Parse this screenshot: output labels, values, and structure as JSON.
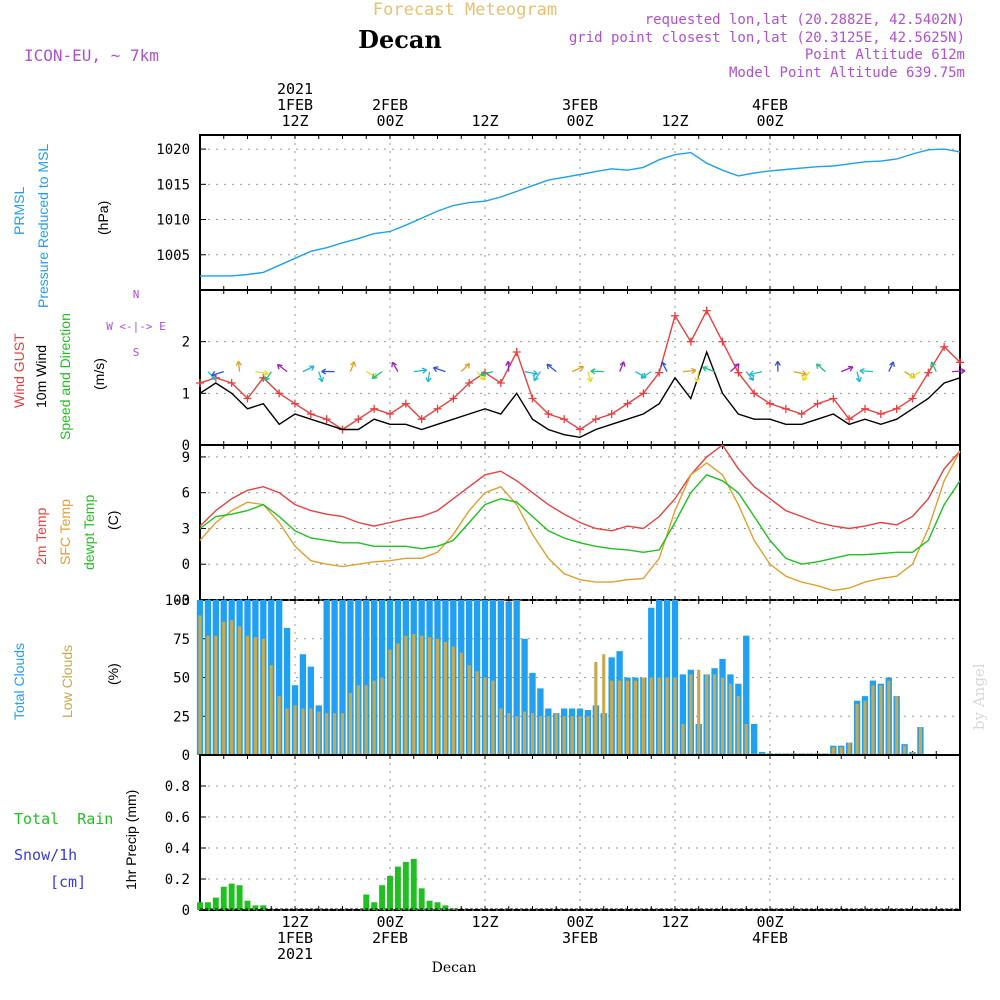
{
  "header": {
    "top_title": "Forecast Meteogram",
    "station": "Decan",
    "model": "ICON-EU, ~ 7km",
    "requested": "requested lon,lat (20.2882E, 42.5402N)",
    "gridpoint": "grid point closest lon,lat (20.3125E, 42.5625N)",
    "alt1": "Point Altitude 612m",
    "alt2": "Model Point Altitude 639.75m",
    "credit": "by Angel",
    "footer": "Decan"
  },
  "colors": {
    "pressure": "#1fa0e8",
    "gust": "#e84040",
    "wind": "#000000",
    "temp2m": "#e84040",
    "sfc": "#e0a030",
    "dewpt": "#20c020",
    "total_clouds": "#1fa0f0",
    "low_clouds": "#c8a850",
    "rain": "#20c020",
    "snow_label": "#3a3ae0",
    "model_label": "#b050d0",
    "title_label": "#e8c070"
  },
  "top_axis": [
    {
      "pos": 12,
      "lines": [
        "2021",
        "1FEB",
        "12Z"
      ]
    },
    {
      "pos": 24,
      "lines": [
        "2FEB",
        "00Z"
      ]
    },
    {
      "pos": 36,
      "lines": [
        "12Z"
      ]
    },
    {
      "pos": 48,
      "lines": [
        "3FEB",
        "00Z"
      ]
    },
    {
      "pos": 60,
      "lines": [
        "12Z"
      ]
    },
    {
      "pos": 72,
      "lines": [
        "4FEB",
        "00Z"
      ]
    }
  ],
  "bottom_axis": [
    {
      "pos": 12,
      "lines": [
        "12Z",
        "1FEB",
        "2021"
      ]
    },
    {
      "pos": 24,
      "lines": [
        "00Z",
        "2FEB"
      ]
    },
    {
      "pos": 36,
      "lines": [
        "12Z"
      ]
    },
    {
      "pos": 48,
      "lines": [
        "00Z",
        "3FEB"
      ]
    },
    {
      "pos": 60,
      "lines": [
        "12Z"
      ]
    },
    {
      "pos": 72,
      "lines": [
        "00Z",
        "4FEB"
      ]
    }
  ],
  "panel_labels": {
    "pressure": [
      "PRMSL",
      "Pressure Reduced to MSL",
      "(hPa)"
    ],
    "wind": [
      "Wind GUST",
      "10m Wind",
      "Speed and Direction",
      "(m/s)"
    ],
    "compass": [
      "N",
      "W <-|-> E",
      "S"
    ],
    "temp": [
      "2m Temp",
      "SFC Temp",
      "dewpt Temp",
      "(C)"
    ],
    "clouds": [
      "Total Clouds",
      "Low Clouds",
      "(%)"
    ],
    "precip": [
      "Total  Rain",
      "Snow/1h",
      "[cm]",
      "1hr Precip (mm)"
    ]
  },
  "chart_data": [
    {
      "type": "line",
      "title": "PRMSL Pressure Reduced to MSL",
      "ylabel": "(hPa)",
      "ylim": [
        1000,
        1022
      ],
      "yticks": [
        1005,
        1010,
        1015,
        1020
      ],
      "x_hours": [
        0,
        2,
        4,
        6,
        8,
        10,
        12,
        14,
        16,
        18,
        20,
        22,
        24,
        26,
        28,
        30,
        32,
        34,
        36,
        38,
        40,
        42,
        44,
        46,
        48,
        50,
        52,
        54,
        56,
        58,
        60,
        62,
        64,
        66,
        68,
        70,
        72,
        74,
        76,
        78,
        80,
        82,
        84,
        86,
        88,
        90,
        92,
        94,
        96
      ],
      "series": [
        {
          "name": "PRMSL",
          "values": [
            1002,
            1002,
            1002,
            1002.2,
            1002.5,
            1003.5,
            1004.5,
            1005.5,
            1006,
            1006.7,
            1007.3,
            1008,
            1008.3,
            1009.2,
            1010.2,
            1011.2,
            1012,
            1012.4,
            1012.6,
            1013.2,
            1014,
            1014.8,
            1015.6,
            1016,
            1016.4,
            1016.8,
            1017.2,
            1017,
            1017.4,
            1018.5,
            1019.2,
            1019.5,
            1018,
            1017,
            1016.2,
            1016.6,
            1016.9,
            1017.1,
            1017.3,
            1017.5,
            1017.6,
            1017.9,
            1018.2,
            1018.3,
            1018.6,
            1019.3,
            1019.9,
            1020,
            1019.6
          ]
        }
      ]
    },
    {
      "type": "line",
      "title": "Wind GUST / 10m Wind Speed and Direction",
      "ylabel": "(m/s)",
      "ylim": [
        0,
        3
      ],
      "yticks": [
        0,
        1,
        2
      ],
      "x_hours": [
        0,
        2,
        4,
        6,
        8,
        10,
        12,
        14,
        16,
        18,
        20,
        22,
        24,
        26,
        28,
        30,
        32,
        34,
        36,
        38,
        40,
        42,
        44,
        46,
        48,
        50,
        52,
        54,
        56,
        58,
        60,
        62,
        64,
        66,
        68,
        70,
        72,
        74,
        76,
        78,
        80,
        82,
        84,
        86,
        88,
        90,
        92,
        94,
        96
      ],
      "series": [
        {
          "name": "Wind GUST",
          "values": [
            1.2,
            1.3,
            1.2,
            0.9,
            1.3,
            1.0,
            0.8,
            0.6,
            0.5,
            0.3,
            0.5,
            0.7,
            0.6,
            0.8,
            0.5,
            0.7,
            0.9,
            1.2,
            1.4,
            1.2,
            1.8,
            0.9,
            0.6,
            0.5,
            0.3,
            0.5,
            0.6,
            0.8,
            1.0,
            1.4,
            2.5,
            2.0,
            2.6,
            2.0,
            1.4,
            1.0,
            0.8,
            0.7,
            0.6,
            0.8,
            0.9,
            0.5,
            0.7,
            0.6,
            0.7,
            0.9,
            1.4,
            1.9,
            1.6
          ]
        },
        {
          "name": "10m Wind",
          "values": [
            1.0,
            1.2,
            1.0,
            0.7,
            0.8,
            0.4,
            0.6,
            0.5,
            0.4,
            0.3,
            0.3,
            0.5,
            0.4,
            0.4,
            0.3,
            0.4,
            0.5,
            0.6,
            0.7,
            0.6,
            1.0,
            0.5,
            0.3,
            0.2,
            0.15,
            0.3,
            0.4,
            0.5,
            0.6,
            0.8,
            1.3,
            0.9,
            1.8,
            1.0,
            0.6,
            0.5,
            0.5,
            0.4,
            0.4,
            0.5,
            0.6,
            0.4,
            0.5,
            0.4,
            0.5,
            0.7,
            0.9,
            1.2,
            1.3
          ]
        }
      ]
    },
    {
      "type": "line",
      "title": "2m Temp / SFC Temp / dewpt Temp",
      "ylabel": "(C)",
      "ylim": [
        -3,
        10
      ],
      "yticks": [
        -3,
        0,
        3,
        6,
        9
      ],
      "x_hours": [
        0,
        2,
        4,
        6,
        8,
        10,
        12,
        14,
        16,
        18,
        20,
        22,
        24,
        26,
        28,
        30,
        32,
        34,
        36,
        38,
        40,
        42,
        44,
        46,
        48,
        50,
        52,
        54,
        56,
        58,
        60,
        62,
        64,
        66,
        68,
        70,
        72,
        74,
        76,
        78,
        80,
        82,
        84,
        86,
        88,
        90,
        92,
        94,
        96
      ],
      "series": [
        {
          "name": "2m Temp",
          "values": [
            3.2,
            4.5,
            5.5,
            6.2,
            6.5,
            6.0,
            5.0,
            4.5,
            4.2,
            4.0,
            3.5,
            3.2,
            3.5,
            3.8,
            4.0,
            4.5,
            5.5,
            6.5,
            7.5,
            7.8,
            7.0,
            6.0,
            5.0,
            4.2,
            3.5,
            3.0,
            2.8,
            3.2,
            3.0,
            4.0,
            5.5,
            7.5,
            9.0,
            10.0,
            8.0,
            6.5,
            5.5,
            4.5,
            4.0,
            3.5,
            3.2,
            3.0,
            3.2,
            3.5,
            3.3,
            4.0,
            5.5,
            8.0,
            9.5
          ]
        },
        {
          "name": "SFC Temp",
          "values": [
            2.0,
            3.5,
            4.5,
            5.2,
            5.0,
            3.5,
            1.5,
            0.3,
            0.0,
            -0.2,
            0.0,
            0.2,
            0.3,
            0.5,
            0.5,
            1.0,
            2.5,
            4.5,
            6.0,
            6.5,
            5.0,
            2.5,
            0.5,
            -0.8,
            -1.3,
            -1.5,
            -1.5,
            -1.3,
            -1.2,
            0.5,
            4.5,
            7.5,
            8.5,
            7.5,
            5.0,
            2.0,
            0.0,
            -1.0,
            -1.5,
            -1.8,
            -2.2,
            -2.0,
            -1.5,
            -1.2,
            -1.0,
            0.0,
            3.0,
            7.0,
            9.5
          ]
        },
        {
          "name": "dewpt Temp",
          "values": [
            3.0,
            4.0,
            4.2,
            4.5,
            5.0,
            4.0,
            2.8,
            2.2,
            2.0,
            1.8,
            1.8,
            1.5,
            1.5,
            1.5,
            1.3,
            1.5,
            2.0,
            3.5,
            5.0,
            5.5,
            5.2,
            4.0,
            2.8,
            2.2,
            1.8,
            1.5,
            1.3,
            1.2,
            1.0,
            1.2,
            3.5,
            6.0,
            7.5,
            7.0,
            6.0,
            4.0,
            2.0,
            0.5,
            0.0,
            0.2,
            0.5,
            0.8,
            0.8,
            0.9,
            1.0,
            1.0,
            2.0,
            5.0,
            7.0
          ]
        }
      ]
    },
    {
      "type": "bar",
      "title": "Total Clouds / Low Clouds",
      "ylabel": "(%)",
      "ylim": [
        0,
        100
      ],
      "yticks": [
        0,
        25,
        50,
        75,
        100
      ],
      "x_hours": [
        0,
        1,
        2,
        3,
        4,
        5,
        6,
        7,
        8,
        9,
        10,
        11,
        12,
        13,
        14,
        15,
        16,
        17,
        18,
        19,
        20,
        21,
        22,
        23,
        24,
        25,
        26,
        27,
        28,
        29,
        30,
        31,
        32,
        33,
        34,
        35,
        36,
        37,
        38,
        39,
        40,
        41,
        42,
        43,
        44,
        45,
        46,
        47,
        48,
        49,
        50,
        51,
        52,
        53,
        54,
        55,
        56,
        57,
        58,
        59,
        60,
        61,
        62,
        63,
        64,
        65,
        66,
        67,
        68,
        69,
        70,
        71,
        72,
        73,
        74,
        75,
        76,
        77,
        78,
        79,
        80,
        81,
        82,
        83,
        84,
        85,
        86,
        87,
        88,
        89,
        90,
        91,
        92,
        93,
        94,
        95,
        96
      ],
      "series": [
        {
          "name": "Total Clouds",
          "values": [
            100,
            100,
            100,
            100,
            100,
            100,
            100,
            100,
            100,
            100,
            100,
            82,
            45,
            65,
            57,
            32,
            100,
            100,
            100,
            100,
            100,
            100,
            100,
            100,
            100,
            100,
            100,
            100,
            100,
            100,
            100,
            100,
            100,
            100,
            100,
            100,
            100,
            100,
            100,
            99,
            100,
            75,
            53,
            43,
            30,
            27,
            30,
            30,
            30,
            29,
            32,
            27,
            63,
            67,
            50,
            50,
            50,
            95,
            100,
            100,
            100,
            52,
            55,
            20,
            52,
            56,
            62,
            52,
            46,
            77,
            20,
            2,
            1,
            1,
            1,
            1,
            1,
            1,
            1,
            1,
            6,
            6,
            8,
            35,
            38,
            48,
            46,
            50,
            38,
            7,
            2,
            18,
            0,
            0,
            0,
            0,
            0
          ]
        },
        {
          "name": "Low Clouds",
          "values": [
            90,
            77,
            77,
            86,
            87,
            83,
            77,
            76,
            75,
            58,
            38,
            30,
            32,
            30,
            30,
            28,
            27,
            27,
            27,
            40,
            45,
            45,
            48,
            50,
            68,
            72,
            77,
            78,
            77,
            76,
            75,
            73,
            70,
            66,
            58,
            54,
            50,
            48,
            30,
            27,
            25,
            28,
            27,
            25,
            25,
            27,
            25,
            25,
            25,
            25,
            60,
            65,
            48,
            48,
            48,
            48,
            50,
            50,
            50,
            50,
            50,
            20,
            52,
            55,
            52,
            52,
            50,
            46,
            38,
            20,
            1,
            1,
            1,
            1,
            1,
            1,
            1,
            1,
            1,
            1,
            5,
            5,
            8,
            33,
            35,
            45,
            45,
            48,
            38,
            6,
            2,
            18,
            0,
            0,
            0,
            0,
            0
          ]
        }
      ]
    },
    {
      "type": "bar",
      "title": "1hr Precip",
      "ylabel": "1hr Precip (mm)",
      "ylim": [
        0,
        1.0
      ],
      "yticks": [
        0,
        0.2,
        0.4,
        0.6,
        0.8
      ],
      "x_hours": [
        0,
        1,
        2,
        3,
        4,
        5,
        6,
        7,
        8,
        9,
        10,
        11,
        12,
        13,
        14,
        15,
        16,
        17,
        18,
        19,
        20,
        21,
        22,
        23,
        24,
        25,
        26,
        27,
        28,
        29,
        30,
        31,
        32,
        33,
        34,
        35,
        36
      ],
      "series": [
        {
          "name": "Total Rain",
          "values": [
            0.05,
            0.05,
            0.08,
            0.15,
            0.17,
            0.16,
            0.06,
            0.03,
            0.03,
            0,
            0,
            0,
            0,
            0,
            0,
            0,
            0,
            0,
            0,
            0,
            0,
            0.1,
            0.05,
            0.16,
            0.22,
            0.28,
            0.31,
            0.33,
            0.14,
            0.06,
            0.05,
            0.03,
            0.01,
            0,
            0,
            0,
            0
          ]
        }
      ]
    }
  ]
}
